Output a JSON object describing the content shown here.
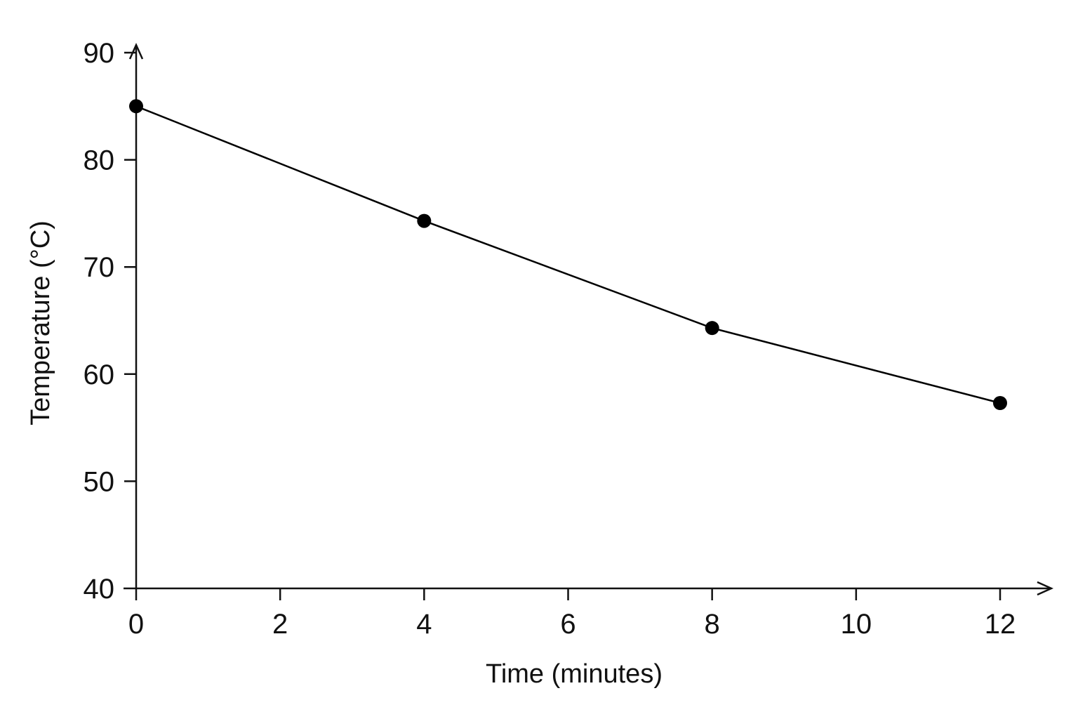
{
  "chart_data": {
    "type": "line",
    "xlabel": "Time (minutes)",
    "ylabel": "Temperature (°C)",
    "xlim": [
      0,
      12
    ],
    "ylim": [
      40,
      90
    ],
    "xticks": [
      0,
      2,
      4,
      6,
      8,
      10,
      12
    ],
    "yticks": [
      40,
      50,
      60,
      70,
      80,
      90
    ],
    "grid": false,
    "legend": "none",
    "series": [
      {
        "x": [
          0,
          4,
          8,
          12
        ],
        "y": [
          85,
          74.3,
          64.3,
          57.3
        ],
        "color": "#000000",
        "marker": "circle"
      }
    ]
  }
}
